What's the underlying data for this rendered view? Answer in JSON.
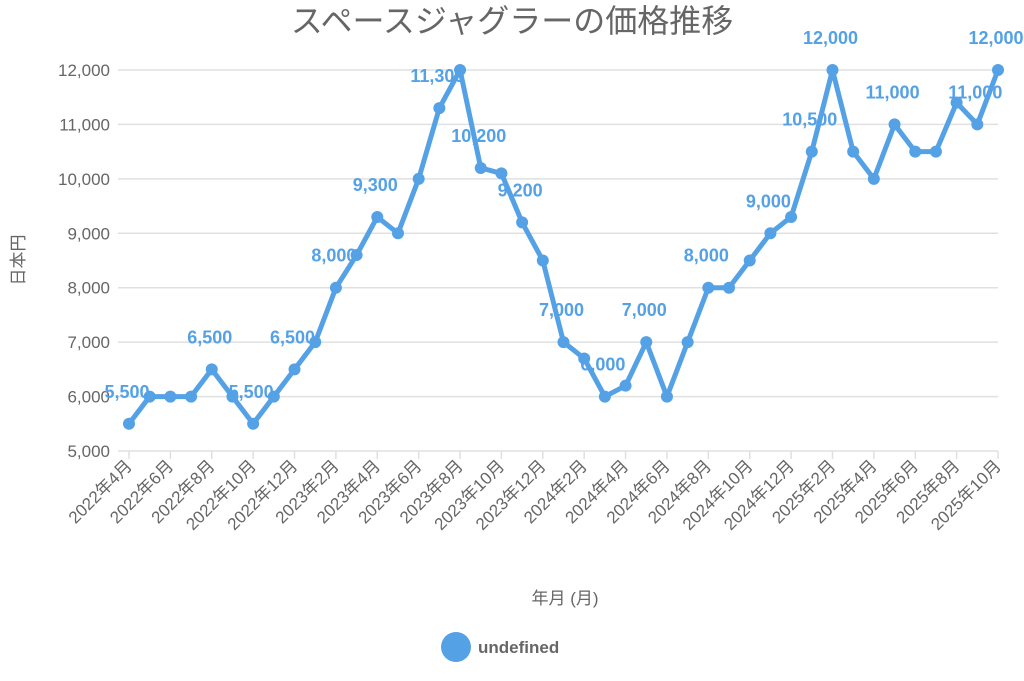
{
  "chart_data": {
    "type": "line",
    "title": "スペースジャグラーの価格推移",
    "xlabel": "年月 (月)",
    "ylabel": "日本円",
    "ylim": [
      5000,
      12000
    ],
    "yticks": [
      5000,
      6000,
      7000,
      8000,
      9000,
      10000,
      11000,
      12000
    ],
    "ytick_labels": [
      "5,000",
      "6,000",
      "7,000",
      "8,000",
      "9,000",
      "10,000",
      "11,000",
      "12,000"
    ],
    "x": [
      "2022年4月",
      "2022年5月",
      "2022年6月",
      "2022年7月",
      "2022年8月",
      "2022年9月",
      "2022年10月",
      "2022年11月",
      "2022年12月",
      "2023年1月",
      "2023年2月",
      "2023年3月",
      "2023年4月",
      "2023年5月",
      "2023年6月",
      "2023年7月",
      "2023年8月",
      "2023年9月",
      "2023年10月",
      "2023年11月",
      "2023年12月",
      "2024年1月",
      "2024年2月",
      "2024年3月",
      "2024年4月",
      "2024年5月",
      "2024年6月",
      "2024年7月",
      "2024年8月",
      "2024年9月",
      "2024年10月",
      "2024年11月",
      "2024年12月",
      "2025年1月",
      "2025年2月",
      "2025年3月",
      "2025年4月",
      "2025年5月",
      "2025年6月",
      "2025年7月",
      "2025年8月",
      "2025年9月",
      "2025年10月"
    ],
    "xtick_labels": [
      "2022年4月",
      "2022年6月",
      "2022年8月",
      "2022年10月",
      "2022年12月",
      "2023年2月",
      "2023年4月",
      "2023年6月",
      "2023年8月",
      "2023年10月",
      "2023年12月",
      "2024年2月",
      "2024年4月",
      "2024年6月",
      "2024年8月",
      "2024年10月",
      "2024年12月",
      "2025年2月",
      "2025年4月",
      "2025年6月",
      "2025年8月",
      "2025年10月"
    ],
    "series": [
      {
        "name": "undefined",
        "color": "#55a1e6",
        "values": [
          5500,
          6000,
          6000,
          6000,
          6500,
          6000,
          5500,
          6000,
          6500,
          7000,
          8000,
          8600,
          9300,
          9000,
          10000,
          11300,
          12000,
          10200,
          10100,
          9200,
          8500,
          7000,
          6700,
          6000,
          6200,
          7000,
          6000,
          7000,
          8000,
          8000,
          8500,
          9000,
          9300,
          10500,
          12000,
          10500,
          10000,
          11000,
          10500,
          10500,
          11400,
          11000,
          12000
        ]
      }
    ],
    "data_labels": [
      {
        "index": 0,
        "text": "5,500"
      },
      {
        "index": 4,
        "text": "6,500"
      },
      {
        "index": 6,
        "text": "5,500"
      },
      {
        "index": 8,
        "text": "6,500"
      },
      {
        "index": 10,
        "text": "8,000"
      },
      {
        "index": 12,
        "text": "9,300"
      },
      {
        "index": 15,
        "text": "11,300"
      },
      {
        "index": 17,
        "text": "10,200"
      },
      {
        "index": 19,
        "text": "9,200"
      },
      {
        "index": 21,
        "text": "7,000"
      },
      {
        "index": 23,
        "text": "6,000"
      },
      {
        "index": 25,
        "text": "7,000"
      },
      {
        "index": 28,
        "text": "8,000"
      },
      {
        "index": 31,
        "text": "9,000"
      },
      {
        "index": 33,
        "text": "10,500"
      },
      {
        "index": 34,
        "text": "12,000"
      },
      {
        "index": 37,
        "text": "11,000"
      },
      {
        "index": 41,
        "text": "11,000"
      },
      {
        "index": 42,
        "text": "12,000"
      }
    ],
    "grid": true,
    "legend": {
      "position": "bottom",
      "entries": [
        "undefined"
      ]
    }
  }
}
